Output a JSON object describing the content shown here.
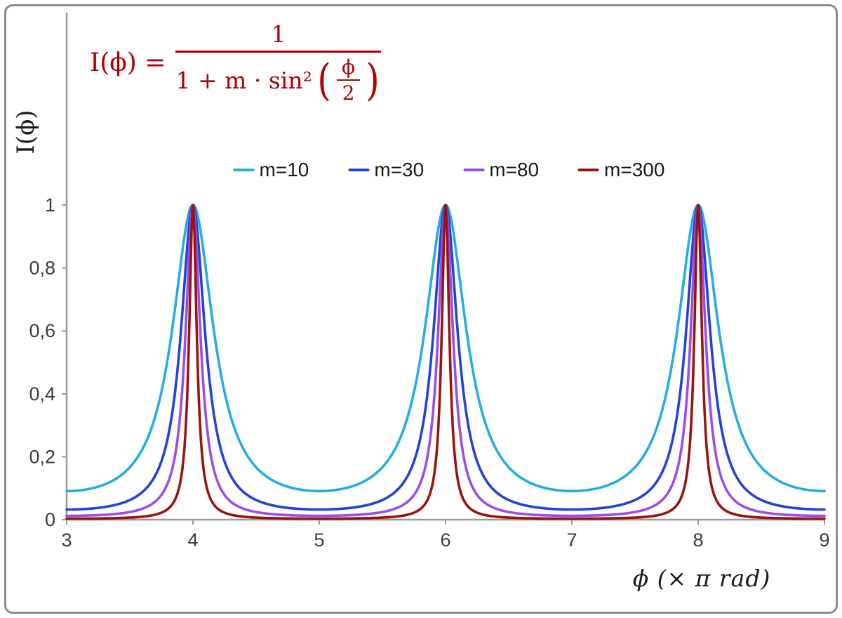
{
  "formula": {
    "lhs": "I(ϕ) =",
    "numerator": "1",
    "denominator_prefix": "1 + m · sin²",
    "open_paren": "(",
    "inner_numerator": "ϕ",
    "inner_denominator": "2",
    "close_paren": ")",
    "color": "#b00000"
  },
  "legend": {
    "items": [
      {
        "label": "m=10",
        "color": "#24ace4"
      },
      {
        "label": "m=30",
        "color": "#2342d8"
      },
      {
        "label": "m=80",
        "color": "#9b4de8"
      },
      {
        "label": "m=300",
        "color": "#98140f"
      }
    ]
  },
  "axes": {
    "y_label": "I(ϕ)",
    "x_label": "ϕ  (× π rad)",
    "axis_color": "#9a9a9a",
    "tick_label_color": "#3c3c3c",
    "x_ticks": [
      {
        "value": 3,
        "label": "3"
      },
      {
        "value": 4,
        "label": "4"
      },
      {
        "value": 5,
        "label": "5"
      },
      {
        "value": 6,
        "label": "6"
      },
      {
        "value": 7,
        "label": "7"
      },
      {
        "value": 8,
        "label": "8"
      },
      {
        "value": 9,
        "label": "9"
      }
    ],
    "y_ticks": [
      {
        "value": 0,
        "label": "0"
      },
      {
        "value": 0.2,
        "label": "0,2"
      },
      {
        "value": 0.4,
        "label": "0,4"
      },
      {
        "value": 0.6,
        "label": "0,6"
      },
      {
        "value": 0.8,
        "label": "0,8"
      },
      {
        "value": 1,
        "label": "1"
      }
    ]
  },
  "chart_data": {
    "type": "line",
    "title": "Airy transmission function I(ϕ) = 1 / (1 + m·sin²(ϕ/2))",
    "formula": "I(phi) = 1 / (1 + m * sin^2(phi/2)), phi = x * pi rad",
    "xlabel": "ϕ (× π rad)",
    "ylabel": "I(ϕ)",
    "x_range": [
      3,
      9
    ],
    "y_range": [
      0,
      1
    ],
    "x_unit": "pi rad",
    "peaks_at_x": [
      4,
      6,
      8
    ],
    "peak_value": 1,
    "grid": false,
    "legend_position": "top-center",
    "series": [
      {
        "name": "m=10",
        "m": 10,
        "color": "#24ace4",
        "min_value": 0.0909
      },
      {
        "name": "m=30",
        "m": 30,
        "color": "#2342d8",
        "min_value": 0.0323
      },
      {
        "name": "m=80",
        "m": 80,
        "color": "#9b4de8",
        "min_value": 0.0123
      },
      {
        "name": "m=300",
        "m": 300,
        "color": "#98140f",
        "min_value": 0.0033
      }
    ]
  }
}
